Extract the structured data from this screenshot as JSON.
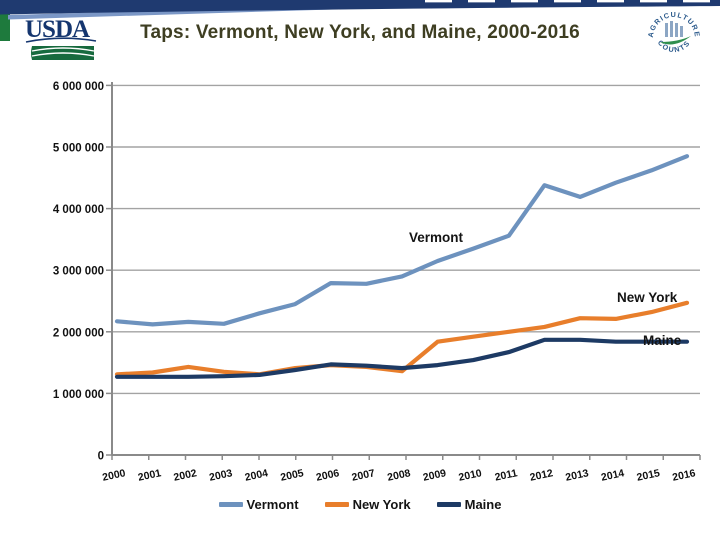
{
  "header": {
    "title": "Taps: Vermont, New York, and Maine, 2000-2016",
    "usda_logo_text": "USDA",
    "badge_text_top": "AGRICULTURE",
    "badge_text_bottom": "COUNTS"
  },
  "colors": {
    "vermont": "#6d92be",
    "new_york": "#e87e2b",
    "maine": "#1d3a64",
    "gridline": "#a3a3a3",
    "axis": "#8a8a8a",
    "title": "#3e3e22",
    "band_navy": "#1f3a70",
    "band_lightblue": "#7b97c6",
    "band_green": "#1e7a3d"
  },
  "chart_data": {
    "type": "line",
    "title": "Taps: Vermont, New York, and Maine, 2000-2016",
    "x": [
      "2000",
      "2001",
      "2002",
      "2003",
      "2004",
      "2005",
      "2006",
      "2007",
      "2008",
      "2009",
      "2010",
      "2011",
      "2012",
      "2013",
      "2014",
      "2015",
      "2016"
    ],
    "series": [
      {
        "name": "Vermont",
        "color": "#6d92be",
        "values": [
          2170000,
          2120000,
          2160000,
          2130000,
          2300000,
          2450000,
          2790000,
          2780000,
          2900000,
          3150000,
          3350000,
          3560000,
          4380000,
          4190000,
          4420000,
          4620000,
          4850000
        ]
      },
      {
        "name": "New York",
        "color": "#e87e2b",
        "values": [
          1310000,
          1340000,
          1430000,
          1350000,
          1310000,
          1410000,
          1460000,
          1430000,
          1360000,
          1840000,
          1920000,
          2000000,
          2080000,
          2220000,
          2210000,
          2320000,
          2470000
        ]
      },
      {
        "name": "Maine",
        "color": "#1d3a64",
        "values": [
          1270000,
          1270000,
          1270000,
          1280000,
          1300000,
          1380000,
          1470000,
          1450000,
          1410000,
          1460000,
          1540000,
          1670000,
          1870000,
          1870000,
          1840000,
          1840000,
          1840000
        ]
      }
    ],
    "xlabel": "",
    "ylabel": "",
    "ylim": [
      0,
      6000000
    ],
    "ytick_step": 1000000,
    "ytick_labels": [
      "0",
      "1 000 000",
      "2 000 000",
      "3 000 000",
      "4 000 000",
      "5 000 000",
      "6 000 000"
    ],
    "grid": true,
    "legend_position": "bottom"
  }
}
